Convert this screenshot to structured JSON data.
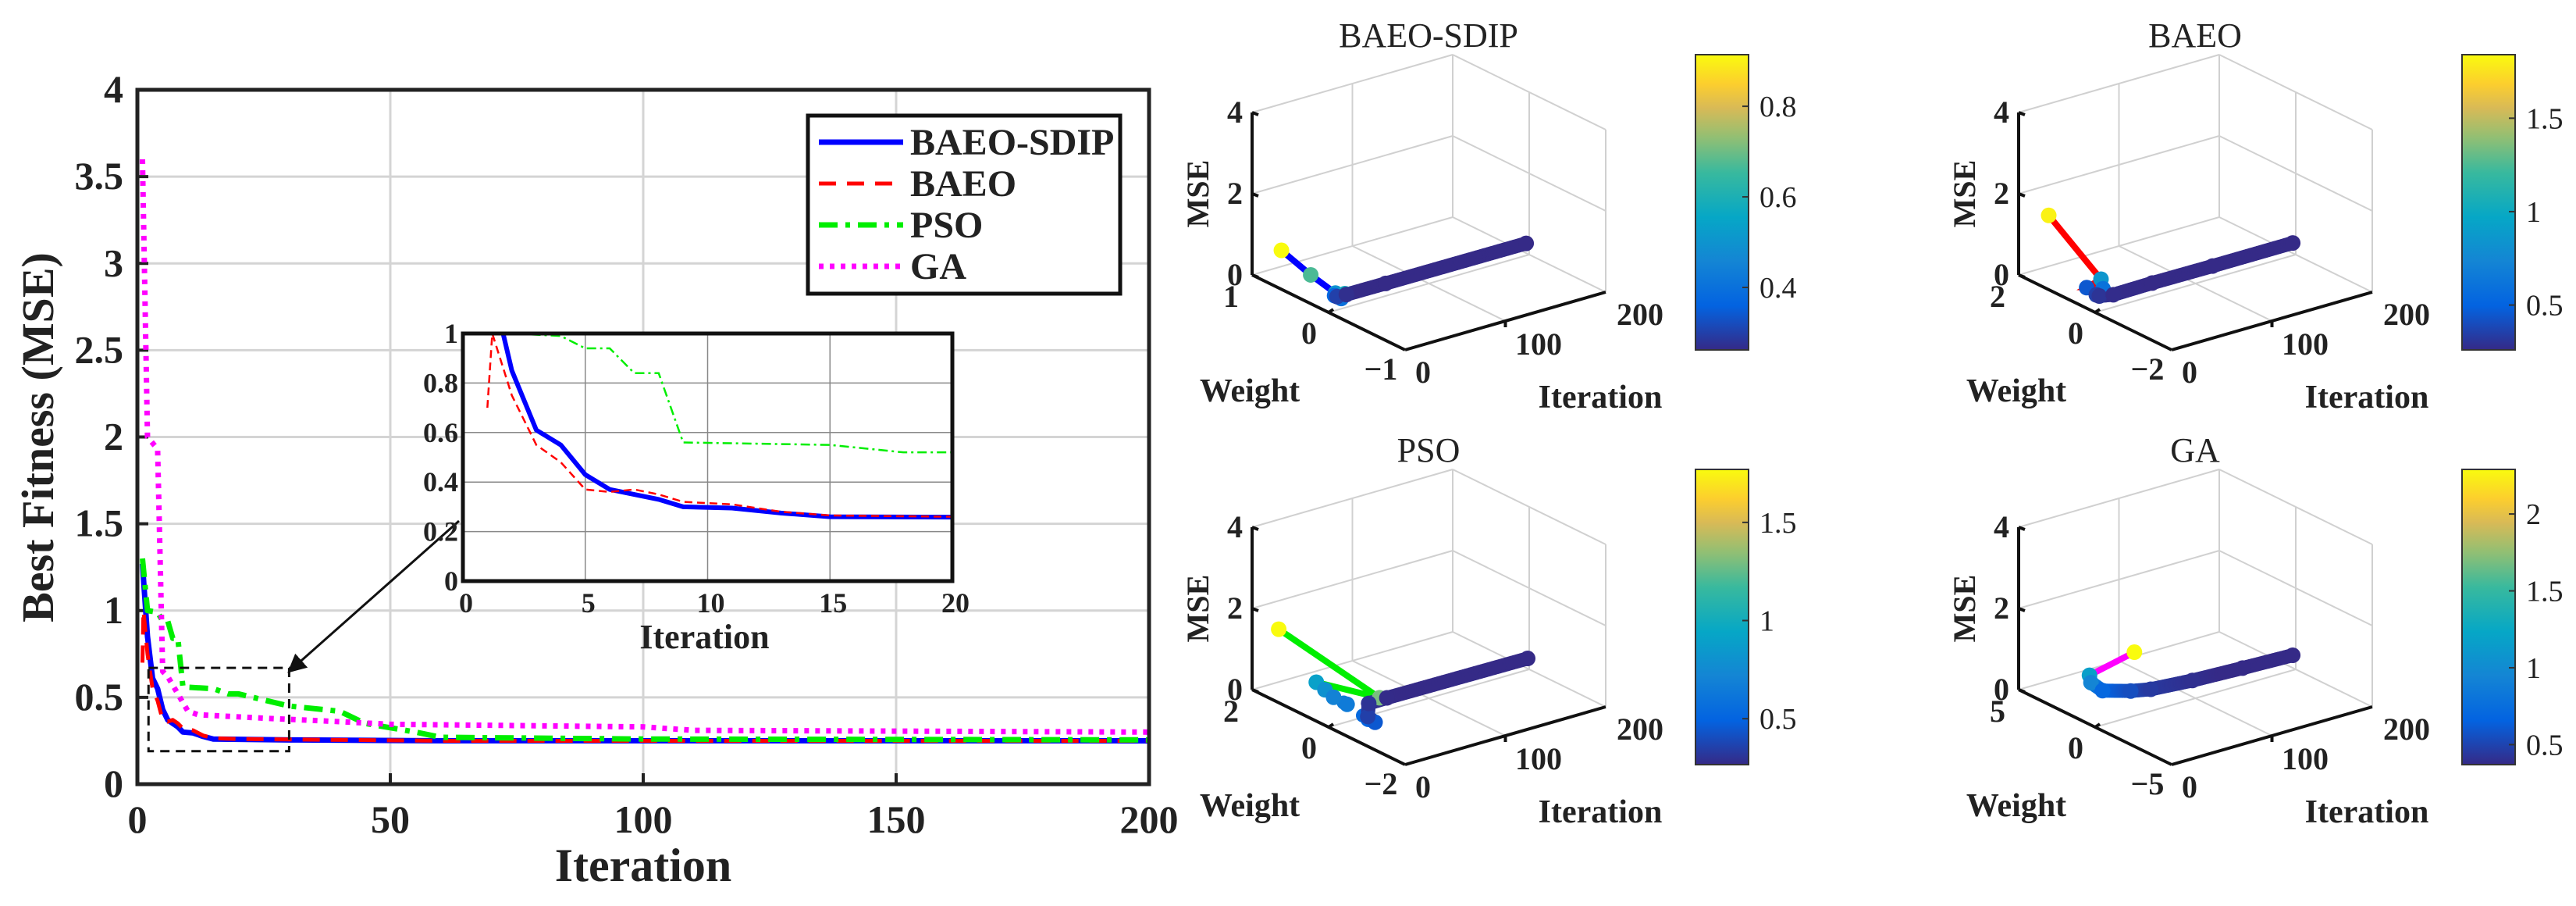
{
  "chart_data": [
    {
      "type": "line",
      "id": "main",
      "title": "",
      "xlabel": "Iteration",
      "ylabel": "Best Fitness (MSE)",
      "xlim": [
        0,
        200
      ],
      "ylim": [
        0,
        4
      ],
      "xticks": [
        0,
        50,
        100,
        150,
        200
      ],
      "yticks": [
        0,
        0.5,
        1,
        1.5,
        2,
        2.5,
        3,
        3.5,
        4
      ],
      "ytick_labels": [
        "0",
        "0.5",
        "1",
        "1.5",
        "2",
        "2.5",
        "3",
        "3.5",
        "4"
      ],
      "grid": true,
      "legend_position": "top-right",
      "series": [
        {
          "name": "BAEO-SDIP",
          "legend_label": "BAEO-SDIP",
          "color": "#0000ff",
          "style": "solid",
          "x": [
            1,
            2,
            3,
            4,
            5,
            6,
            7,
            8,
            9,
            11,
            13,
            15,
            30,
            60,
            200
          ],
          "y": [
            1.27,
            0.85,
            0.61,
            0.55,
            0.43,
            0.37,
            0.35,
            0.33,
            0.3,
            0.295,
            0.275,
            0.26,
            0.255,
            0.25,
            0.25
          ]
        },
        {
          "name": "BAEO",
          "legend_label": " BAEO",
          "color": "#ff0000",
          "style": "dashed",
          "x": [
            1,
            1.2,
            2,
            3,
            4,
            5,
            6,
            7,
            8,
            9,
            11,
            13,
            15,
            20,
            60,
            200
          ],
          "y": [
            0.7,
            1.0,
            0.75,
            0.55,
            0.48,
            0.37,
            0.36,
            0.37,
            0.35,
            0.32,
            0.31,
            0.28,
            0.265,
            0.26,
            0.25,
            0.25
          ]
        },
        {
          "name": "PSO",
          "legend_label": "PSO",
          "color": "#00ee00",
          "style": "dashdot",
          "x": [
            1,
            2,
            4,
            5,
            6,
            7,
            8,
            9,
            15,
            18,
            20,
            30,
            40,
            45,
            55,
            60,
            100,
            200
          ],
          "y": [
            1.3,
            1.0,
            0.99,
            0.94,
            0.94,
            0.84,
            0.84,
            0.56,
            0.55,
            0.52,
            0.52,
            0.45,
            0.42,
            0.35,
            0.3,
            0.27,
            0.26,
            0.255
          ]
        },
        {
          "name": "GA",
          "legend_label": "GA",
          "color": "#ff00ff",
          "style": "dotted",
          "x": [
            1,
            2,
            4,
            5,
            6,
            10,
            12,
            25,
            40,
            50,
            100,
            110,
            200
          ],
          "y": [
            3.6,
            2.0,
            1.93,
            0.65,
            0.62,
            0.42,
            0.4,
            0.38,
            0.36,
            0.345,
            0.33,
            0.31,
            0.3
          ]
        }
      ],
      "zoom_region": {
        "x": [
          2.2,
          30
        ],
        "y": [
          0.19,
          0.67
        ]
      }
    },
    {
      "type": "line",
      "id": "inset",
      "xlabel": "Iteration",
      "xlim": [
        0,
        20
      ],
      "ylim": [
        0,
        1
      ],
      "xticks": [
        0,
        5,
        10,
        15,
        20
      ],
      "yticks": [
        0,
        0.2,
        0.4,
        0.6,
        0.8,
        1
      ],
      "ytick_labels": [
        "0",
        "0.2",
        "0.4",
        "0.6",
        "0.8",
        "1"
      ],
      "grid": true,
      "series_shown": [
        "BAEO-SDIP",
        "BAEO",
        "PSO"
      ]
    },
    {
      "type": "scatter3d",
      "id": "baeo-sdip",
      "title": "BAEO-SDIP",
      "line_color": "#0000ff",
      "xlabel": "Iteration",
      "ylabel": "Weight",
      "zlabel": "MSE",
      "xlim": [
        0,
        200
      ],
      "ylim": [
        -1,
        1
      ],
      "zlim": [
        0,
        4
      ],
      "xticks": [
        "0",
        "100",
        "200"
      ],
      "yticks": [
        "1",
        "0",
        "−1"
      ],
      "zticks": [
        "0",
        "2",
        "4"
      ],
      "colorbar": {
        "range": [
          0.262,
          0.914
        ],
        "ticks": [
          0.4,
          0.6,
          0.8
        ],
        "tick_labels": [
          "0.4",
          "0.6",
          "0.8"
        ]
      },
      "points": {
        "iteration": [
          1,
          2,
          3,
          4,
          5,
          6,
          10,
          20,
          60,
          200
        ],
        "weight": [
          0.63,
          0.26,
          -0.05,
          -0.16,
          -0.1,
          0,
          0.02,
          0.03,
          0.04,
          0.04
        ],
        "mse": [
          0.94,
          0.67,
          0.5,
          0.58,
          0.4,
          0.37,
          0.3,
          0.27,
          0.25,
          0.24
        ]
      }
    },
    {
      "type": "scatter3d",
      "id": "baeo",
      "title": "BAEO",
      "line_color": "#ff0000",
      "xlabel": "Iteration",
      "ylabel": "Weight",
      "zlabel": "MSE",
      "xlim": [
        0,
        200
      ],
      "ylim": [
        -2,
        2
      ],
      "zlim": [
        0,
        4
      ],
      "xticks": [
        "0",
        "100",
        "200"
      ],
      "yticks": [
        "2",
        "0",
        "−2"
      ],
      "zticks": [
        "0",
        "2",
        "4"
      ],
      "colorbar": {
        "range": [
          0.26,
          1.84
        ],
        "ticks": [
          0.5,
          1,
          1.5
        ],
        "tick_labels": [
          "0.5",
          "1",
          "1.5"
        ]
      },
      "points": {
        "iteration": [
          1,
          2,
          3,
          4,
          5,
          8,
          20,
          60,
          120,
          200
        ],
        "weight": [
          1.24,
          -0.1,
          0.3,
          -0.1,
          0.1,
          0.1,
          0.05,
          0.08,
          0.08,
          0.08
        ],
        "mse": [
          1.81,
          0.85,
          0.45,
          0.6,
          0.35,
          0.3,
          0.27,
          0.26,
          0.25,
          0.25
        ]
      }
    },
    {
      "type": "scatter3d",
      "id": "pso",
      "title": "PSO",
      "line_color": "#00ee00",
      "xlabel": "Iteration",
      "ylabel": "Weight",
      "zlabel": "MSE",
      "xlim": [
        0,
        200
      ],
      "ylim": [
        -2,
        2
      ],
      "zlim": [
        0,
        4
      ],
      "xticks": [
        "0",
        "100",
        "200"
      ],
      "yticks": [
        "2",
        "0",
        "−2"
      ],
      "zticks": [
        "0",
        "2",
        "4"
      ],
      "colorbar": {
        "range": [
          0.266,
          1.77
        ],
        "ticks": [
          0.5,
          1,
          1.5
        ],
        "tick_labels": [
          "0.5",
          "1",
          "1.5"
        ]
      },
      "points": {
        "iteration": [
          1,
          2,
          3,
          4,
          5,
          7,
          9,
          12,
          20,
          40,
          60,
          200
        ],
        "weight": [
          1.33,
          -1.28,
          0.4,
          0.2,
          0,
          -0.3,
          -0.8,
          -0.9,
          -0.5,
          0,
          0.05,
          0.04
        ],
        "mse": [
          1.79,
          1.3,
          0.9,
          0.8,
          0.7,
          0.65,
          0.5,
          0.45,
          0.35,
          0.3,
          0.27,
          0.25
        ]
      }
    },
    {
      "type": "scatter3d",
      "id": "ga",
      "title": "GA",
      "line_color": "#ff00ff",
      "xlabel": "Iteration",
      "ylabel": "Weight",
      "zlabel": "MSE",
      "xlim": [
        0,
        200
      ],
      "ylim": [
        -5,
        5
      ],
      "zlim": [
        0,
        4
      ],
      "xticks": [
        "0",
        "100",
        "200"
      ],
      "yticks": [
        "5",
        "0",
        "−5"
      ],
      "zticks": [
        "0",
        "2",
        "4"
      ],
      "colorbar": {
        "range": [
          0.37,
          2.29
        ],
        "ticks": [
          0.5,
          1,
          1.5,
          2
        ],
        "tick_labels": [
          "0.5",
          "1",
          "1.5",
          "2"
        ]
      },
      "points": {
        "iteration": [
          1,
          2,
          5,
          15,
          40,
          60,
          100,
          150,
          200
        ],
        "weight": [
          -2.5,
          0.5,
          0.6,
          0.5,
          0.3,
          0.3,
          0.2,
          0.2,
          0.2
        ],
        "mse": [
          2.3,
          1.17,
          0.95,
          0.7,
          0.55,
          0.45,
          0.4,
          0.35,
          0.31
        ]
      }
    }
  ]
}
